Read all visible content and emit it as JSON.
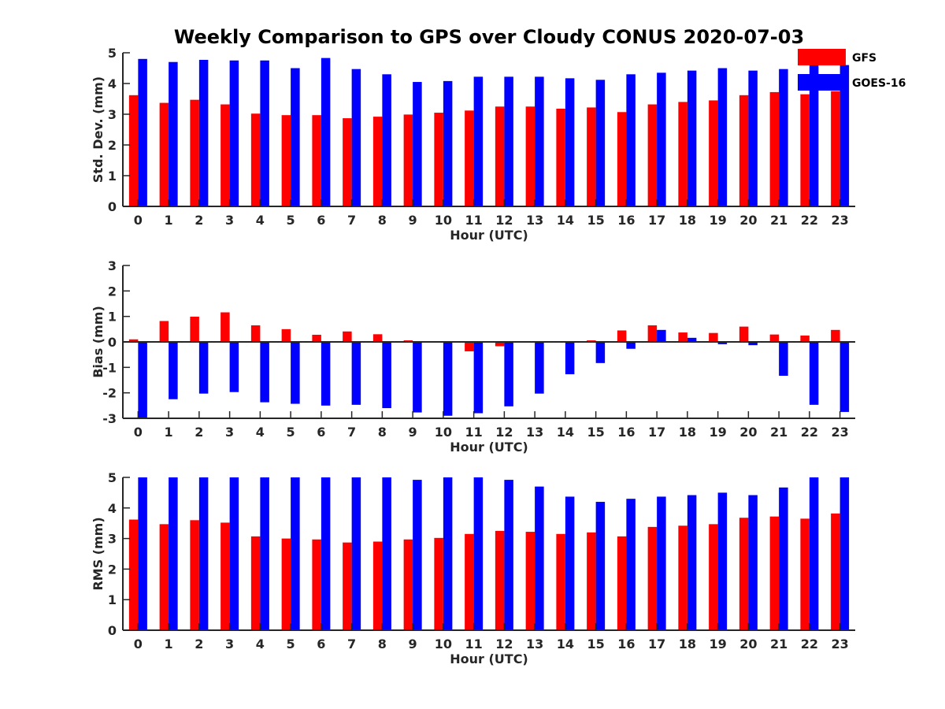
{
  "figure_title": "Weekly Comparison to GPS over Cloudy CONUS 2020-07-03",
  "colors": {
    "GFS": "#ff0000",
    "GOES-16": "#0000ff",
    "axis": "#262626"
  },
  "chart_data": [
    {
      "type": "bar",
      "title": "Weekly Comparison to GPS over Cloudy CONUS 2020-07-03",
      "xlabel": "Hour (UTC)",
      "ylabel": "Std. Dev. (mm)",
      "ylim": [
        0,
        5
      ],
      "yticks": [
        0,
        1,
        2,
        3,
        4,
        5
      ],
      "categories": [
        "0",
        "1",
        "2",
        "3",
        "4",
        "5",
        "6",
        "7",
        "8",
        "9",
        "10",
        "11",
        "12",
        "13",
        "14",
        "15",
        "16",
        "17",
        "18",
        "19",
        "20",
        "21",
        "22",
        "23"
      ],
      "legend": {
        "placement": "top-right",
        "entries": [
          "GFS",
          "GOES-16"
        ]
      },
      "grid": false,
      "series": [
        {
          "name": "GFS",
          "values": [
            3.62,
            3.37,
            3.47,
            3.32,
            3.02,
            2.97,
            2.97,
            2.87,
            2.92,
            2.99,
            3.05,
            3.12,
            3.25,
            3.25,
            3.18,
            3.22,
            3.07,
            3.32,
            3.4,
            3.45,
            3.62,
            3.72,
            3.65,
            3.75
          ]
        },
        {
          "name": "GOES-16",
          "values": [
            4.8,
            4.7,
            4.77,
            4.75,
            4.75,
            4.5,
            4.83,
            4.47,
            4.3,
            4.05,
            4.08,
            4.22,
            4.22,
            4.22,
            4.17,
            4.12,
            4.3,
            4.35,
            4.42,
            4.5,
            4.42,
            4.47,
            4.65,
            4.6
          ]
        }
      ]
    },
    {
      "type": "bar",
      "xlabel": "Hour (UTC)",
      "ylabel": "Bias (mm)",
      "ylim": [
        -3,
        3
      ],
      "yticks": [
        -3,
        -2,
        -1,
        0,
        1,
        2,
        3
      ],
      "categories": [
        "0",
        "1",
        "2",
        "3",
        "4",
        "5",
        "6",
        "7",
        "8",
        "9",
        "10",
        "11",
        "12",
        "13",
        "14",
        "15",
        "16",
        "17",
        "18",
        "19",
        "20",
        "21",
        "22",
        "23"
      ],
      "grid": false,
      "series": [
        {
          "name": "GFS",
          "values": [
            0.1,
            0.82,
            0.99,
            1.16,
            0.65,
            0.5,
            0.28,
            0.41,
            0.3,
            0.06,
            -0.03,
            -0.37,
            -0.17,
            0.0,
            -0.02,
            0.06,
            0.45,
            0.65,
            0.37,
            0.35,
            0.6,
            0.29,
            0.25,
            0.47
          ]
        },
        {
          "name": "GOES-16",
          "values": [
            -3.0,
            -2.25,
            -2.03,
            -1.97,
            -2.37,
            -2.43,
            -2.5,
            -2.47,
            -2.6,
            -2.77,
            -2.9,
            -2.8,
            -2.53,
            -2.03,
            -1.27,
            -0.83,
            -0.27,
            0.47,
            0.16,
            -0.09,
            -0.13,
            -1.33,
            -2.47,
            -2.75
          ]
        }
      ]
    },
    {
      "type": "bar",
      "xlabel": "Hour (UTC)",
      "ylabel": "RMS (mm)",
      "ylim": [
        0,
        5
      ],
      "yticks": [
        0,
        1,
        2,
        3,
        4,
        5
      ],
      "categories": [
        "0",
        "1",
        "2",
        "3",
        "4",
        "5",
        "6",
        "7",
        "8",
        "9",
        "10",
        "11",
        "12",
        "13",
        "14",
        "15",
        "16",
        "17",
        "18",
        "19",
        "20",
        "21",
        "22",
        "23"
      ],
      "grid": false,
      "series": [
        {
          "name": "GFS",
          "values": [
            3.62,
            3.47,
            3.6,
            3.52,
            3.07,
            3.0,
            2.97,
            2.87,
            2.9,
            2.97,
            3.02,
            3.15,
            3.25,
            3.22,
            3.15,
            3.2,
            3.07,
            3.38,
            3.42,
            3.47,
            3.68,
            3.72,
            3.65,
            3.82
          ]
        },
        {
          "name": "GOES-16",
          "values": [
            5.0,
            5.0,
            5.0,
            5.0,
            5.0,
            5.0,
            5.0,
            5.0,
            5.0,
            4.92,
            5.0,
            5.0,
            4.92,
            4.7,
            4.37,
            4.2,
            4.3,
            4.37,
            4.42,
            4.5,
            4.42,
            4.67,
            5.0,
            5.0
          ]
        }
      ]
    }
  ]
}
